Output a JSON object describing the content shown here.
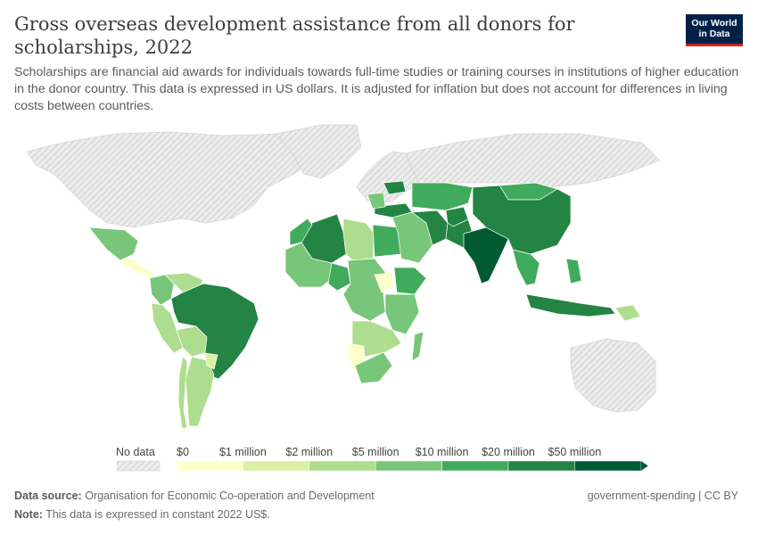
{
  "title": "Gross overseas development assistance from all donors for scholarships, 2022",
  "subtitle": "Scholarships are financial aid awards for individuals towards full-time studies or training courses in institutions of higher education in the donor country. This data is expressed in US dollars. It is adjusted for inflation but does not account for differences in living costs between countries.",
  "logo": {
    "line1": "Our World",
    "line2": "in Data"
  },
  "legend": {
    "no_data_label": "No data",
    "labels": [
      "$0",
      "$1 million",
      "$2 million",
      "$5 million",
      "$10 million",
      "$20 million",
      "$50 million"
    ],
    "colors": [
      "#ffffcc",
      "#d9f0a3",
      "#addd8e",
      "#78c679",
      "#41ab5d",
      "#238443",
      "#005a32"
    ]
  },
  "footer": {
    "source_label": "Data source:",
    "source_text": "Organisation for Economic Co-operation and Development",
    "note_label": "Note:",
    "note_text": "This data is expressed in constant 2022 US$.",
    "license": "government-spending | CC BY"
  },
  "colors": {
    "no_data_fill": "#e9e9e9",
    "no_data_hatch": "#cfcfcf",
    "border": "#ffffff"
  },
  "regions": [
    {
      "name": "North America",
      "category": "no-data"
    },
    {
      "name": "Greenland",
      "category": "no-data"
    },
    {
      "name": "Europe",
      "category": "no-data"
    },
    {
      "name": "Russia",
      "category": "no-data"
    },
    {
      "name": "Australia",
      "category": "no-data"
    },
    {
      "name": "Mexico",
      "category": "$5 million–$10 million"
    },
    {
      "name": "Central America",
      "category": "$0–$1 million"
    },
    {
      "name": "Colombia",
      "category": "$5 million–$10 million"
    },
    {
      "name": "Venezuela",
      "category": "$2 million–$5 million"
    },
    {
      "name": "Peru",
      "category": "$2 million–$5 million"
    },
    {
      "name": "Bolivia",
      "category": "$2 million–$5 million"
    },
    {
      "name": "Brazil",
      "category": "$20 million–$50 million"
    },
    {
      "name": "Argentina",
      "category": "$2 million–$5 million"
    },
    {
      "name": "Chile",
      "category": "$2 million–$5 million"
    },
    {
      "name": "Paraguay",
      "category": "$1 million–$2 million"
    },
    {
      "name": "Algeria",
      "category": "$20 million–$50 million"
    },
    {
      "name": "Morocco",
      "category": "$10 million–$20 million"
    },
    {
      "name": "Libya",
      "category": "$2 million–$5 million"
    },
    {
      "name": "Egypt",
      "category": "$10 million–$20 million"
    },
    {
      "name": "West Africa",
      "category": "$5 million–$10 million"
    },
    {
      "name": "Nigeria",
      "category": "$10 million–$20 million"
    },
    {
      "name": "Central Africa",
      "category": "$5 million–$10 million"
    },
    {
      "name": "South Sudan",
      "category": "$0–$1 million"
    },
    {
      "name": "Ethiopia",
      "category": "$10 million–$20 million"
    },
    {
      "name": "East Africa",
      "category": "$5 million–$10 million"
    },
    {
      "name": "Southern Africa",
      "category": "$2 million–$5 million"
    },
    {
      "name": "Namibia",
      "category": "$0–$1 million"
    },
    {
      "name": "South Africa",
      "category": "$5 million–$10 million"
    },
    {
      "name": "Madagascar",
      "category": "$5 million–$10 million"
    },
    {
      "name": "Turkey",
      "category": "$20 million–$50 million"
    },
    {
      "name": "Middle East",
      "category": "$5 million–$10 million"
    },
    {
      "name": "Iran",
      "category": "$20 million–$50 million"
    },
    {
      "name": "Central Asia",
      "category": "$10 million–$20 million"
    },
    {
      "name": "Afghanistan",
      "category": "$20 million–$50 million"
    },
    {
      "name": "Pakistan",
      "category": "$20 million–$50 million"
    },
    {
      "name": "India",
      "category": ">$50 million"
    },
    {
      "name": "Mongolia",
      "category": "$10 million–$20 million"
    },
    {
      "name": "China",
      "category": "$20 million–$50 million"
    },
    {
      "name": "Southeast Asia",
      "category": "$10 million–$20 million"
    },
    {
      "name": "Indonesia",
      "category": "$20 million–$50 million"
    },
    {
      "name": "Philippines",
      "category": "$10 million–$20 million"
    },
    {
      "name": "Papua New Guinea",
      "category": "$2 million–$5 million"
    },
    {
      "name": "Ukraine",
      "category": "$20 million–$50 million"
    },
    {
      "name": "Balkans",
      "category": "$5 million–$10 million"
    }
  ]
}
